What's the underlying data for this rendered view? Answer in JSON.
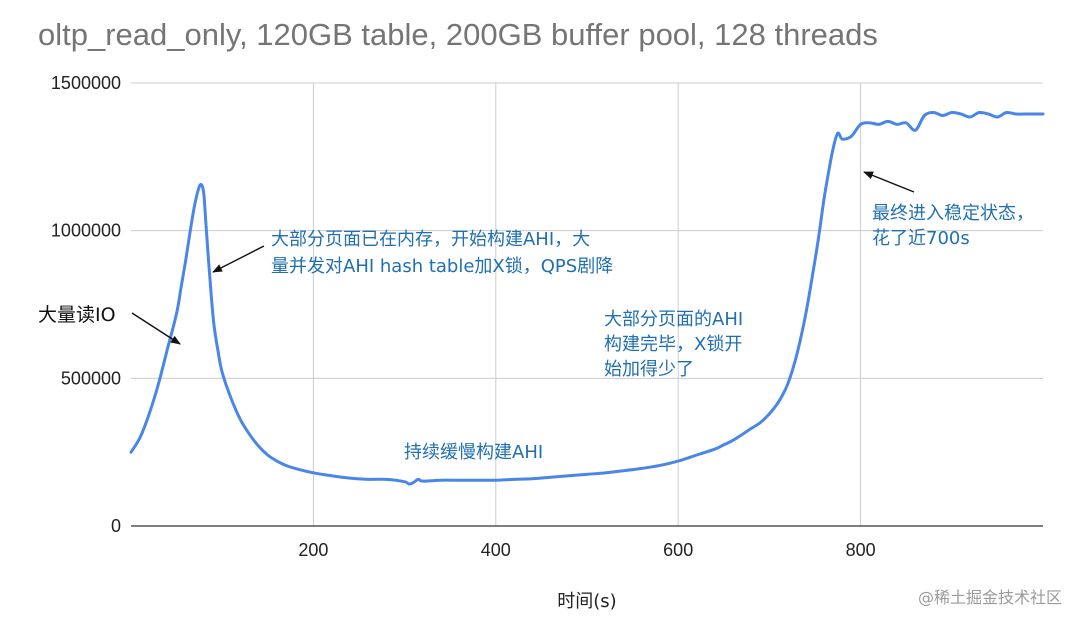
{
  "chart_data": {
    "type": "line",
    "title": "oltp_read_only, 120GB table, 200GB buffer pool, 128 threads",
    "xlabel": "时间(s)",
    "ylabel": "",
    "xlim": [
      0,
      1000
    ],
    "ylim": [
      0,
      1500000
    ],
    "x_ticks": [
      200,
      400,
      600,
      800
    ],
    "y_ticks": [
      0,
      500000,
      1000000,
      1500000
    ],
    "x_tick_labels": [
      "200",
      "400",
      "600",
      "800"
    ],
    "y_tick_labels": [
      "0",
      "500000",
      "1000000",
      "1500000"
    ],
    "grid": true,
    "legend": "none",
    "series": [
      {
        "color": "#4a86e8",
        "x": [
          0,
          10,
          20,
          30,
          40,
          50,
          55,
          60,
          65,
          70,
          75,
          78,
          80,
          82,
          85,
          88,
          91,
          95,
          100,
          110,
          120,
          130,
          140,
          150,
          160,
          170,
          180,
          200,
          220,
          240,
          260,
          280,
          300,
          305,
          310,
          315,
          320,
          340,
          360,
          380,
          400,
          420,
          440,
          460,
          480,
          500,
          520,
          540,
          560,
          580,
          600,
          620,
          640,
          650,
          660,
          680,
          690,
          700,
          710,
          720,
          730,
          740,
          750,
          755,
          760,
          765,
          770,
          775,
          780,
          790,
          800,
          810,
          820,
          830,
          840,
          850,
          860,
          870,
          880,
          890,
          900,
          910,
          920,
          930,
          940,
          950,
          960,
          970,
          980,
          990,
          1000
        ],
        "y": [
          250000,
          300000,
          380000,
          480000,
          600000,
          720000,
          810000,
          900000,
          1000000,
          1090000,
          1150000,
          1152000,
          1120000,
          1030000,
          900000,
          780000,
          680000,
          600000,
          520000,
          430000,
          360000,
          310000,
          270000,
          240000,
          220000,
          205000,
          195000,
          180000,
          170000,
          162000,
          158000,
          158000,
          150000,
          142000,
          148000,
          158000,
          152000,
          155000,
          155000,
          155000,
          155000,
          158000,
          160000,
          165000,
          170000,
          175000,
          180000,
          187000,
          195000,
          205000,
          220000,
          240000,
          260000,
          275000,
          290000,
          330000,
          350000,
          380000,
          420000,
          480000,
          580000,
          720000,
          900000,
          1000000,
          1110000,
          1200000,
          1280000,
          1330000,
          1310000,
          1320000,
          1360000,
          1365000,
          1360000,
          1370000,
          1360000,
          1365000,
          1340000,
          1390000,
          1400000,
          1390000,
          1400000,
          1395000,
          1385000,
          1400000,
          1395000,
          1385000,
          1400000,
          1395000,
          1395000,
          1395000,
          1395000
        ]
      }
    ],
    "annotations": [
      {
        "lines": [
          "大量读IO"
        ]
      },
      {
        "lines": [
          "大部分页面已在内存，开始构建AHI，大",
          "量并发对AHI hash table加X锁，QPS剧降"
        ]
      },
      {
        "lines": [
          "持续缓慢构建AHI"
        ]
      },
      {
        "lines": [
          "大部分页面的AHI",
          "构建完毕，X锁开",
          "始加得少了"
        ]
      },
      {
        "lines": [
          "最终进入稳定状态，",
          "花了近700s"
        ]
      }
    ]
  },
  "watermark": "@稀土掘金技术社区"
}
